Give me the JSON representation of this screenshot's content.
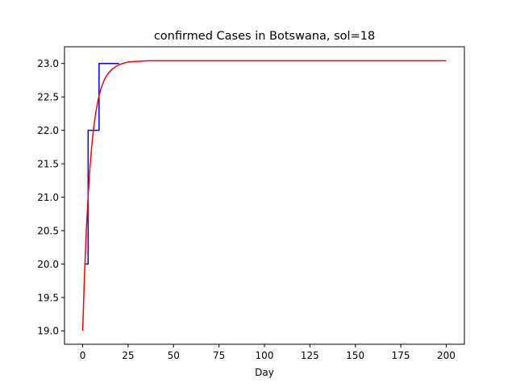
{
  "chart_data": {
    "type": "line",
    "title": "confirmed Cases in Botswana, sol=18",
    "xlabel": "Day",
    "ylabel": "",
    "xlim": [
      -10,
      210
    ],
    "ylim": [
      18.8,
      23.25
    ],
    "xticks": [
      0,
      25,
      50,
      75,
      100,
      125,
      150,
      175,
      200
    ],
    "yticks": [
      19.0,
      19.5,
      20.0,
      20.5,
      21.0,
      21.5,
      22.0,
      22.5,
      23.0
    ],
    "ytick_labels": [
      "19.0",
      "19.5",
      "20.0",
      "20.5",
      "21.0",
      "21.5",
      "22.0",
      "22.5",
      "23.0"
    ],
    "grid": false,
    "series": [
      {
        "color": "#0000ff",
        "x": [
          1,
          2,
          3,
          3,
          4,
          5,
          6,
          7,
          8,
          9,
          9,
          10,
          11,
          12,
          13,
          14,
          15,
          16,
          17,
          18,
          19,
          20
        ],
        "y": [
          20,
          20,
          20,
          22,
          22,
          22,
          22,
          22,
          22,
          22,
          23,
          23,
          23,
          23,
          23,
          23,
          23,
          23,
          23,
          23,
          23,
          23
        ]
      },
      {
        "color": "#ff0000",
        "x": [
          0,
          1,
          2,
          3,
          4,
          5,
          6,
          7,
          8,
          9,
          10,
          12,
          14,
          16,
          18,
          20,
          22,
          25,
          28,
          32,
          36,
          40,
          50,
          60,
          80,
          100,
          120,
          140,
          160,
          180,
          200
        ],
        "y": [
          19.0,
          19.84,
          20.5,
          21.02,
          21.44,
          21.77,
          22.03,
          22.23,
          22.39,
          22.52,
          22.62,
          22.76,
          22.85,
          22.91,
          22.95,
          22.98,
          23.0,
          23.02,
          23.03,
          23.035,
          23.04,
          23.04,
          23.04,
          23.04,
          23.04,
          23.04,
          23.04,
          23.04,
          23.04,
          23.04,
          23.04
        ]
      }
    ]
  }
}
